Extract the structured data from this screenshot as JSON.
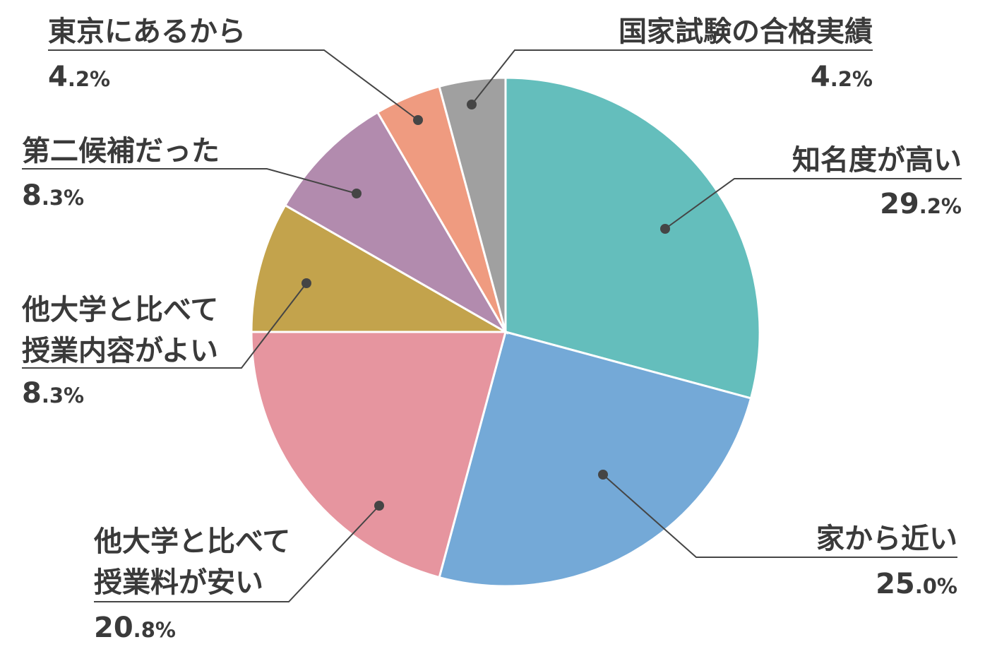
{
  "chart_data": {
    "type": "pie",
    "slices": [
      {
        "label": [
          "知名度が高い"
        ],
        "value": 29.2,
        "value_main": "29",
        "value_frac": ".2%",
        "color": "#64bebc"
      },
      {
        "label": [
          "家から近い"
        ],
        "value": 25.0,
        "value_main": "25",
        "value_frac": ".0%",
        "color": "#74a9d7"
      },
      {
        "label": [
          "他大学と比べて",
          "授業料が安い"
        ],
        "value": 20.8,
        "value_main": "20",
        "value_frac": ".8%",
        "color": "#e6959f"
      },
      {
        "label": [
          "他大学と比べて",
          "授業内容がよい"
        ],
        "value": 8.3,
        "value_main": "8",
        "value_frac": ".3%",
        "color": "#c3a34c"
      },
      {
        "label": [
          "第二候補だった"
        ],
        "value": 8.3,
        "value_main": "8",
        "value_frac": ".3%",
        "color": "#b28bae"
      },
      {
        "label": [
          "東京にあるから"
        ],
        "value": 4.2,
        "value_main": "4",
        "value_frac": ".2%",
        "color": "#ef9b80"
      },
      {
        "label": [
          "国家試験の合格実績"
        ],
        "value": 4.2,
        "value_main": "4",
        "value_frac": ".2%",
        "color": "#a0a0a0"
      }
    ],
    "start": "12 o'clock",
    "direction": "clockwise",
    "legend": "none"
  }
}
